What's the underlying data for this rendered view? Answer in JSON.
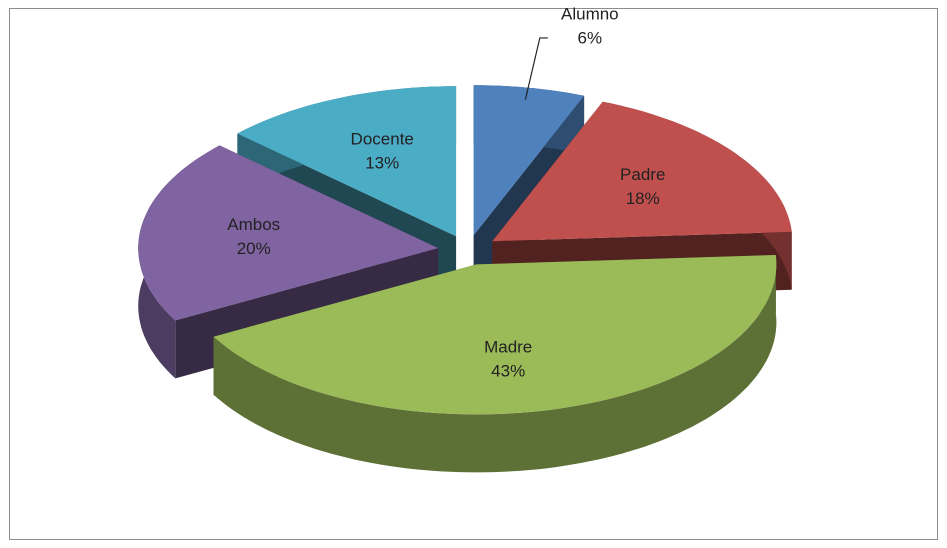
{
  "chart_data": {
    "type": "pie3d",
    "categories": [
      "Alumno",
      "Padre",
      "Madre",
      "Ambos",
      "Docente"
    ],
    "values": [
      6,
      18,
      43,
      20,
      13
    ],
    "value_labels": [
      "6%",
      "18%",
      "43%",
      "20%",
      "13%"
    ],
    "colors": [
      "#4f81bd",
      "#c0504d",
      "#9bbb59",
      "#8064a2",
      "#4bacc6"
    ]
  }
}
